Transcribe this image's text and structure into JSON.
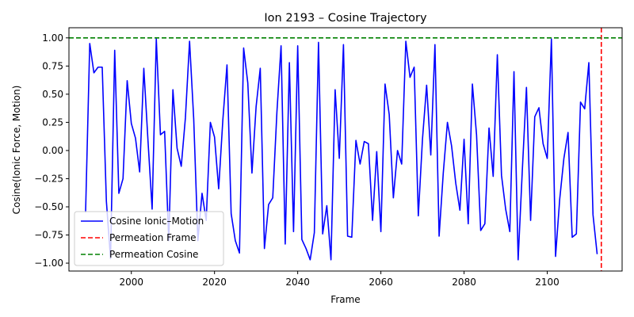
{
  "chart_data": {
    "type": "line",
    "title": "Ion 2193 – Cosine Trajectory",
    "xlabel": "Frame",
    "ylabel": "Cosine(Ionic Force, Motion)",
    "xlim": [
      1985,
      2118
    ],
    "ylim": [
      -1.07,
      1.09
    ],
    "xticks": [
      2000,
      2020,
      2040,
      2060,
      2080,
      2100
    ],
    "yticks": [
      -1.0,
      -0.75,
      -0.5,
      -0.25,
      0.0,
      0.25,
      0.5,
      0.75,
      1.0
    ],
    "ytick_labels": [
      "−1.00",
      "−0.75",
      "−0.50",
      "−0.25",
      "0.00",
      "0.25",
      "0.50",
      "0.75",
      "1.00"
    ],
    "grid": false,
    "legend_position": "lower-left",
    "series": [
      {
        "name": "Cosine Ionic–Motion",
        "color": "#0000ff",
        "x": [
          1989,
          1990,
          1991,
          1992,
          1993,
          1994,
          1995,
          1996,
          1997,
          1998,
          1999,
          2000,
          2001,
          2002,
          2003,
          2004,
          2005,
          2006,
          2007,
          2008,
          2009,
          2010,
          2011,
          2012,
          2013,
          2014,
          2015,
          2016,
          2017,
          2018,
          2019,
          2020,
          2021,
          2022,
          2023,
          2024,
          2025,
          2026,
          2027,
          2028,
          2029,
          2030,
          2031,
          2032,
          2033,
          2034,
          2035,
          2036,
          2037,
          2038,
          2039,
          2040,
          2041,
          2042,
          2043,
          2044,
          2045,
          2046,
          2047,
          2048,
          2049,
          2050,
          2051,
          2052,
          2053,
          2054,
          2055,
          2056,
          2057,
          2058,
          2059,
          2060,
          2061,
          2062,
          2063,
          2064,
          2065,
          2066,
          2067,
          2068,
          2069,
          2070,
          2071,
          2072,
          2073,
          2074,
          2075,
          2076,
          2077,
          2078,
          2079,
          2080,
          2081,
          2082,
          2083,
          2084,
          2085,
          2086,
          2087,
          2088,
          2089,
          2090,
          2091,
          2092,
          2093,
          2094,
          2095,
          2096,
          2097,
          2098,
          2099,
          2100,
          2101,
          2102,
          2103,
          2104,
          2105,
          2106,
          2107,
          2108,
          2109,
          2110,
          2111,
          2112
        ],
        "y": [
          -0.55,
          0.95,
          0.69,
          0.74,
          0.74,
          -0.45,
          -0.96,
          0.89,
          -0.38,
          -0.25,
          0.62,
          0.24,
          0.11,
          -0.19,
          0.73,
          0.09,
          -0.52,
          0.99,
          0.14,
          0.17,
          -0.8,
          0.54,
          0.02,
          -0.14,
          0.29,
          0.97,
          0.28,
          -0.8,
          -0.38,
          -0.62,
          0.25,
          0.12,
          -0.34,
          0.27,
          0.76,
          -0.56,
          -0.8,
          -0.91,
          0.91,
          0.6,
          -0.2,
          0.39,
          0.73,
          -0.87,
          -0.48,
          -0.42,
          0.34,
          0.93,
          -0.83,
          0.78,
          -0.72,
          0.93,
          -0.79,
          -0.87,
          -0.97,
          -0.73,
          0.96,
          -0.74,
          -0.49,
          -0.97,
          0.54,
          -0.07,
          0.94,
          -0.76,
          -0.77,
          0.09,
          -0.12,
          0.08,
          0.06,
          -0.62,
          -0.01,
          -0.72,
          0.59,
          0.32,
          -0.42,
          0.0,
          -0.12,
          0.97,
          0.65,
          0.74,
          -0.58,
          0.1,
          0.58,
          -0.04,
          0.94,
          -0.76,
          -0.2,
          0.25,
          0.04,
          -0.29,
          -0.53,
          0.1,
          -0.65,
          0.59,
          0.14,
          -0.71,
          -0.65,
          0.2,
          -0.23,
          0.85,
          -0.22,
          -0.52,
          -0.72,
          0.7,
          -0.97,
          -0.18,
          0.56,
          -0.62,
          0.3,
          0.38,
          0.06,
          -0.07,
          0.99,
          -0.94,
          -0.43,
          -0.07,
          0.16,
          -0.77,
          -0.74,
          0.43,
          0.37,
          0.78,
          -0.57,
          -0.92
        ]
      }
    ],
    "reference_lines": [
      {
        "name": "Permeation Frame",
        "orientation": "vertical",
        "value": 2113,
        "color": "#ff0000",
        "style": "dashed"
      },
      {
        "name": "Permeation Cosine",
        "orientation": "horizontal",
        "value": 1.0,
        "color": "#008000",
        "style": "dashed"
      }
    ]
  }
}
